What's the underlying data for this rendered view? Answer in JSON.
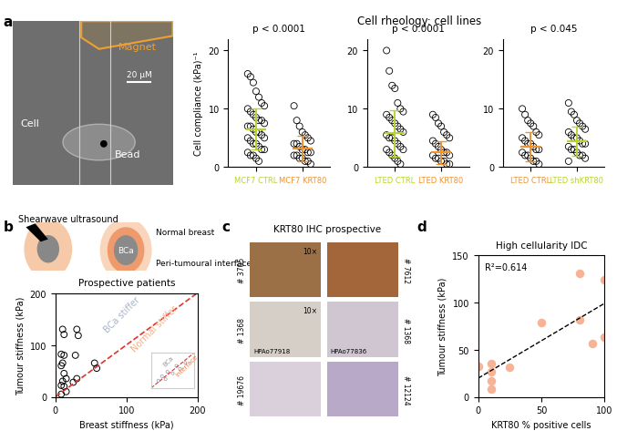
{
  "panel_labels": [
    "a",
    "b",
    "c",
    "d"
  ],
  "panels": {
    "a": {
      "title": "Cell rheology: cell lines",
      "image": {
        "magnet": "Magnet",
        "cell": "Cell",
        "bead": "Bead",
        "scale_bar": "20 μM"
      }
    },
    "b": {
      "schematic": {
        "title": "Shearwave ultrasound",
        "outer": "Normal breast",
        "interface": "Peri-tumoural interface",
        "tumour": "BCa"
      }
    },
    "c": {
      "title": "KRT80 IHC prospective",
      "images": [
        {
          "id": "# 3705",
          "magnification": "10×"
        },
        {
          "id": "# 7612"
        },
        {
          "id": "# 1368",
          "magnification": "10×",
          "caption": "HPAo77918"
        },
        {
          "id": "# 1368",
          "caption": "HPAo77836"
        },
        {
          "id": "# 19676"
        },
        {
          "id": "# 12124"
        }
      ]
    }
  },
  "chart_data": [
    {
      "type": "strip",
      "title": "p < 0.0001",
      "y_label": "Cell compliance (kPa)⁻¹",
      "categories": [
        "MCF7 CTRL",
        "MCF7 KRT80"
      ],
      "colors": [
        "#b8d433",
        "#f0922e"
      ],
      "values": [
        [
          16,
          15.5,
          14.5,
          13,
          12,
          11,
          10.5,
          10,
          9.5,
          9,
          8.5,
          8,
          8,
          7.5,
          7,
          7,
          6.5,
          6,
          6,
          5.5,
          5,
          5,
          4.5,
          4,
          4,
          3.5,
          3,
          3,
          2.5,
          2,
          2,
          1.5,
          1
        ],
        [
          10.5,
          8,
          7,
          6,
          5.5,
          5,
          4.5,
          4,
          4,
          3.5,
          3,
          3,
          2.5,
          2.5,
          2,
          2,
          1.5,
          1.5,
          1,
          1,
          0.5
        ]
      ],
      "means": [
        6.5,
        3.2
      ],
      "sds": [
        3.5,
        2.2
      ],
      "ylim": [
        0,
        22
      ],
      "yticks": [
        0,
        10,
        20
      ]
    },
    {
      "type": "strip",
      "title": "p < 0.0001",
      "categories": [
        "LTED CTRL",
        "LTED KRT80"
      ],
      "colors": [
        "#b8d433",
        "#f0922e"
      ],
      "values": [
        [
          20,
          16.5,
          14,
          13.5,
          11,
          10,
          9.5,
          9,
          8.5,
          8,
          7.5,
          7,
          6.5,
          6,
          5.5,
          5,
          5,
          4.5,
          4,
          3.5,
          3,
          3,
          2.5,
          2,
          1.5,
          1,
          0.5
        ],
        [
          9,
          8.5,
          7.5,
          7,
          6,
          5.5,
          5,
          4.5,
          4,
          3.5,
          3,
          2.5,
          2.5,
          2,
          2,
          1.5,
          1.5,
          1,
          1,
          0.5,
          0.5
        ]
      ],
      "means": [
        5.8,
        2.5
      ],
      "sds": [
        4.0,
        2.0
      ],
      "ylim": [
        0,
        22
      ],
      "yticks": [
        0,
        10,
        20
      ]
    },
    {
      "type": "strip",
      "title": "p < 0.045",
      "categories": [
        "LTED CTRL",
        "LTED shKRT80"
      ],
      "colors": [
        "#f0922e",
        "#b8d433"
      ],
      "values": [
        [
          10,
          9,
          8,
          7.5,
          7,
          6,
          5.5,
          5,
          4.5,
          4,
          4,
          3.5,
          3,
          3,
          2.5,
          2,
          2,
          1.5,
          1,
          1,
          0.5
        ],
        [
          11,
          9.5,
          9,
          8,
          7.5,
          7,
          6.5,
          6,
          5.5,
          5,
          5,
          4.5,
          4,
          4,
          3.5,
          3,
          3,
          2.5,
          2,
          2,
          1.5,
          1
        ]
      ],
      "means": [
        3.5,
        4.5
      ],
      "sds": [
        2.5,
        2.5
      ],
      "ylim": [
        0,
        22
      ],
      "yticks": [
        0,
        10,
        20
      ]
    },
    {
      "type": "scatter",
      "title": "Prospective patients",
      "x_label": "Breast stiffness (kPa)",
      "y_label": "Tumour stiffness (kPa)",
      "x": [
        10,
        12,
        8,
        12,
        10,
        8,
        12,
        15,
        10,
        8,
        12,
        15,
        8,
        30,
        32,
        28,
        55,
        58,
        25,
        30
      ],
      "y": [
        130,
        120,
        82,
        80,
        65,
        60,
        45,
        35,
        30,
        22,
        20,
        10,
        5,
        130,
        118,
        80,
        65,
        55,
        28,
        35
      ],
      "marker": "o",
      "color": "#000000",
      "xlim": [
        0,
        200
      ],
      "ylim": [
        0,
        200
      ],
      "xticks": [
        0,
        100,
        200
      ],
      "yticks": [
        0,
        100,
        200
      ],
      "annotations": [
        "BCa stiffer",
        "Normal stiffer"
      ]
    },
    {
      "type": "scatter",
      "x": [
        20,
        30,
        40,
        45,
        60,
        70,
        80,
        95
      ],
      "y": [
        25,
        40,
        30,
        55,
        50,
        75,
        65,
        85
      ],
      "marker": "o",
      "color": "#9a9aa8",
      "xlim": [
        0,
        120
      ],
      "ylim": [
        0,
        120
      ],
      "xticks": [],
      "yticks": [],
      "tick_labels": false,
      "annotations": [
        "Interface",
        "BCa"
      ]
    },
    {
      "type": "scatter",
      "title": "High cellularity IDC",
      "x_label": "KRT80 % positive cells",
      "y_label": "Tumour stiffness (kPa)",
      "x": [
        0,
        10,
        10,
        10,
        10,
        25,
        50,
        80,
        80,
        90,
        100,
        100
      ],
      "y": [
        32,
        17,
        8,
        35,
        27,
        31,
        79,
        131,
        82,
        57,
        63,
        124
      ],
      "marker": "o",
      "color": "#f6b395",
      "xlim": [
        0,
        100
      ],
      "ylim": [
        0,
        150
      ],
      "xticks": [
        0,
        50,
        100
      ],
      "yticks": [
        0,
        50,
        100,
        150
      ],
      "annotations": [
        "R²=0.614"
      ]
    }
  ]
}
